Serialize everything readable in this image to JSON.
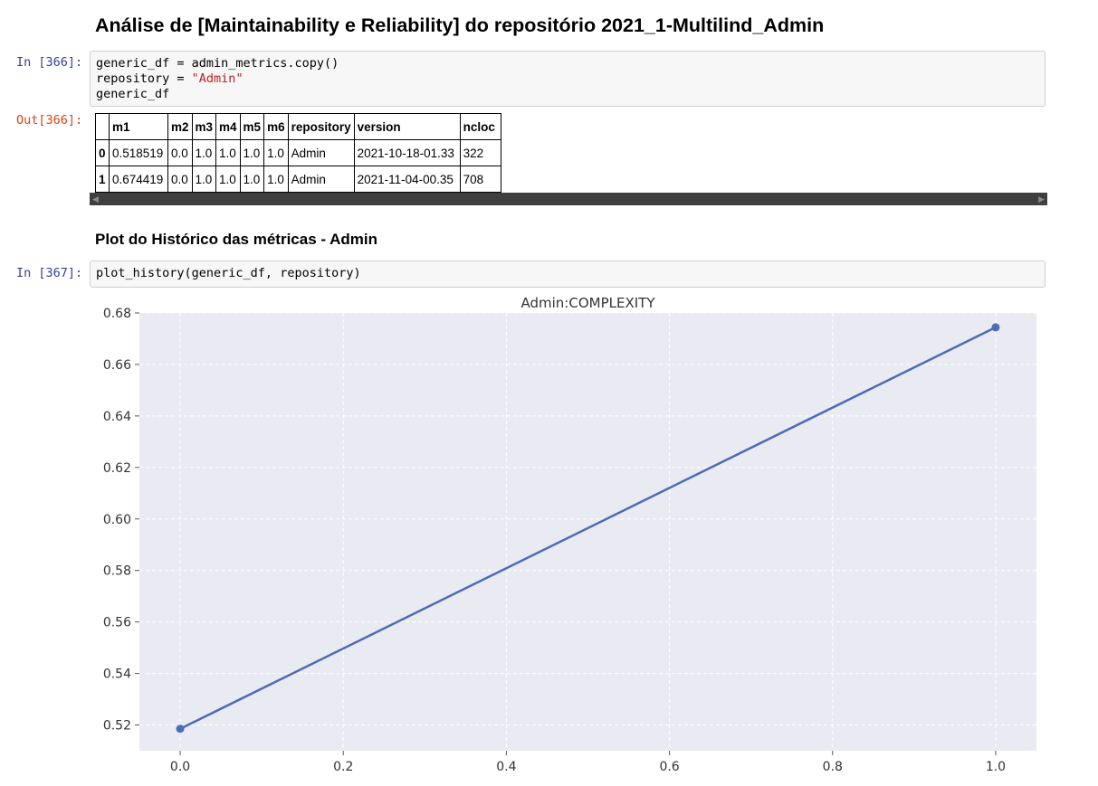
{
  "header": {
    "title": "Análise de [Maintainability e Reliability] do repositório 2021_1-Multilind_Admin"
  },
  "cell_366": {
    "in_prompt": "In [366]:",
    "out_prompt": "Out[366]:",
    "code_lines": [
      "generic_df = admin_metrics.copy()",
      "repository = ",
      "\"Admin\"",
      "generic_df"
    ],
    "table": {
      "columns": [
        "",
        "m1",
        "m2",
        "m3",
        "m4",
        "m5",
        "m6",
        "repository",
        "version",
        "ncloc"
      ],
      "rows": [
        [
          "0",
          "0.518519",
          "0.0",
          "1.0",
          "1.0",
          "1.0",
          "1.0",
          "Admin",
          "2021-10-18-01.33",
          "322"
        ],
        [
          "1",
          "0.674419",
          "0.0",
          "1.0",
          "1.0",
          "1.0",
          "1.0",
          "Admin",
          "2021-11-04-00.35",
          "708"
        ]
      ]
    }
  },
  "section": {
    "title": "Plot do Histórico das métricas - Admin"
  },
  "cell_367": {
    "in_prompt": "In [367]:",
    "code": "plot_history(generic_df, repository)"
  },
  "chart_data": {
    "type": "line",
    "title": "Admin:COMPLEXITY",
    "xlabel": "",
    "ylabel": "",
    "x": [
      0.0,
      1.0
    ],
    "series": [
      {
        "values": [
          0.518519,
          0.674419
        ],
        "color": "#4c6cb3"
      }
    ],
    "xlim": [
      -0.05,
      1.05
    ],
    "ylim": [
      0.51,
      0.68
    ],
    "xticks": [
      "0.0",
      "0.2",
      "0.4",
      "0.6",
      "0.8",
      "1.0"
    ],
    "yticks": [
      "0.52",
      "0.54",
      "0.56",
      "0.58",
      "0.60",
      "0.62",
      "0.64",
      "0.66",
      "0.68"
    ],
    "grid": true,
    "background": "#eaeaf2"
  }
}
